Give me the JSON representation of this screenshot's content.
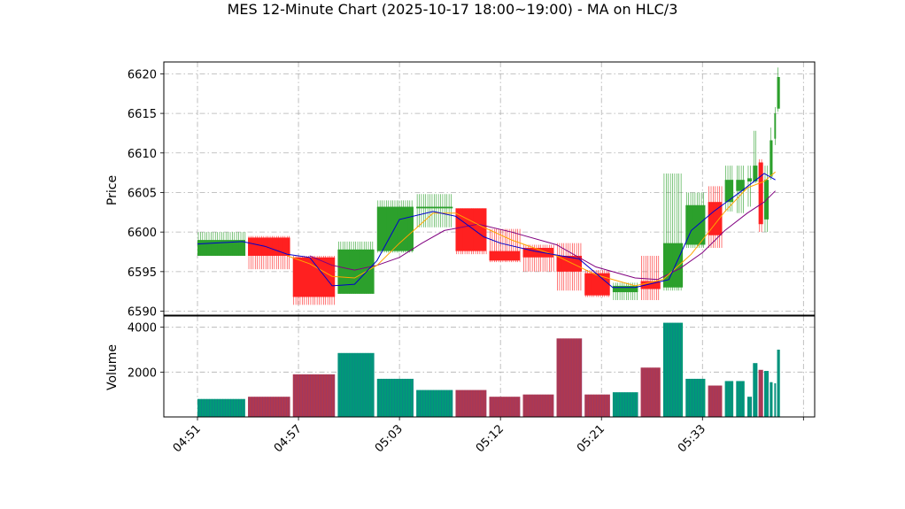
{
  "title": "MES 12-Minute Chart (2025-10-17 18:00~19:00) - MA on HLC/3",
  "chart_data": {
    "type": "ohlc-with-volume",
    "title": "MES 12-Minute Chart (2025-10-17 18:00~19:00) - MA on HLC/3",
    "price_panel": {
      "ylabel": "Price",
      "ylim": [
        6589.5,
        6621.5
      ],
      "yticks": [
        6590,
        6595,
        6600,
        6605,
        6610,
        6615,
        6620
      ],
      "grid": true
    },
    "volume_panel": {
      "ylabel": "Volume",
      "ylim": [
        0,
        4500
      ],
      "yticks": [
        2000,
        4000
      ],
      "grid": true
    },
    "xlim": [
      0,
      110
    ],
    "xticks": [
      {
        "x": 6,
        "label": "04:51"
      },
      {
        "x": 24,
        "label": "04:57"
      },
      {
        "x": 42,
        "label": "05:03"
      },
      {
        "x": 60,
        "label": "05:12"
      },
      {
        "x": 78,
        "label": "05:21"
      },
      {
        "x": 96,
        "label": "05:33"
      },
      {
        "x": 114,
        "label": ""
      }
    ],
    "colors": {
      "up": "#2ca02c",
      "down": "#ff2020",
      "vol_up": "#009a78",
      "vol_down": "#b0384f",
      "ma_fast": "#0000cc",
      "ma_mid": "#ffa500",
      "ma_slow": "#800080"
    },
    "segments": [
      {
        "x0": 6,
        "x1": 14.5,
        "open": 6597,
        "close": 6599,
        "high": 6600,
        "low": 6597,
        "volume": 800
      },
      {
        "x0": 15,
        "x1": 22.5,
        "open": 6599.3,
        "close": 6597,
        "high": 6599.5,
        "low": 6595.3,
        "volume": 900
      },
      {
        "x0": 23,
        "x1": 30.5,
        "open": 6596.8,
        "close": 6591.8,
        "high": 6597,
        "low": 6590.8,
        "volume": 1900
      },
      {
        "x0": 31,
        "x1": 37.5,
        "open": 6592.2,
        "close": 6597.8,
        "high": 6598.8,
        "low": 6592.2,
        "volume": 2850
      },
      {
        "x0": 38,
        "x1": 44.5,
        "open": 6597.6,
        "close": 6603.2,
        "high": 6604,
        "low": 6597.4,
        "volume": 1700
      },
      {
        "x0": 45,
        "x1": 51.5,
        "open": 6603,
        "close": 6603.2,
        "high": 6604.8,
        "low": 6600.6,
        "volume": 1200
      },
      {
        "x0": 52,
        "x1": 57.5,
        "open": 6603,
        "close": 6597.6,
        "high": 6603,
        "low": 6597.2,
        "volume": 1200
      },
      {
        "x0": 58,
        "x1": 63.5,
        "open": 6597.6,
        "close": 6596.4,
        "high": 6600.4,
        "low": 6596.2,
        "volume": 900
      },
      {
        "x0": 64,
        "x1": 69.5,
        "open": 6598,
        "close": 6596.8,
        "high": 6598.4,
        "low": 6595,
        "volume": 1000
      },
      {
        "x0": 70,
        "x1": 74.5,
        "open": 6597,
        "close": 6595,
        "high": 6598.6,
        "low": 6592.6,
        "volume": 3500
      },
      {
        "x0": 75,
        "x1": 79.5,
        "open": 6594.8,
        "close": 6592,
        "high": 6595.2,
        "low": 6591.8,
        "volume": 1000
      },
      {
        "x0": 80,
        "x1": 84.5,
        "open": 6592.4,
        "close": 6593.2,
        "high": 6593.6,
        "low": 6591.4,
        "volume": 1100
      },
      {
        "x0": 85,
        "x1": 88.5,
        "open": 6593.8,
        "close": 6592.8,
        "high": 6597,
        "low": 6591.4,
        "volume": 2200
      },
      {
        "x0": 89,
        "x1": 92.5,
        "open": 6593,
        "close": 6598.6,
        "high": 6607.4,
        "low": 6592.6,
        "volume": 4200
      },
      {
        "x0": 93,
        "x1": 96.5,
        "open": 6598.4,
        "close": 6603.4,
        "high": 6605,
        "low": 6598,
        "volume": 1700
      },
      {
        "x0": 97,
        "x1": 99.5,
        "open": 6603.8,
        "close": 6599.6,
        "high": 6605.8,
        "low": 6598,
        "volume": 1400
      },
      {
        "x0": 100,
        "x1": 101.5,
        "open": 6603.8,
        "close": 6606.6,
        "high": 6608.4,
        "low": 6602.6,
        "volume": 1600
      },
      {
        "x0": 102,
        "x1": 103.5,
        "open": 6605.2,
        "close": 6606.6,
        "high": 6608.4,
        "low": 6602.4,
        "volume": 1600
      },
      {
        "x0": 104,
        "x1": 104.8,
        "open": 6606.4,
        "close": 6606.8,
        "high": 6608.4,
        "low": 6603.2,
        "volume": 900
      },
      {
        "x0": 105,
        "x1": 105.8,
        "open": 6606.4,
        "close": 6608.4,
        "high": 6612.8,
        "low": 6606.2,
        "volume": 2400
      },
      {
        "x0": 106,
        "x1": 106.8,
        "open": 6608.8,
        "close": 6601,
        "high": 6609.2,
        "low": 6600,
        "volume": 2100
      },
      {
        "x0": 107,
        "x1": 107.8,
        "open": 6601.6,
        "close": 6606.6,
        "high": 6608.4,
        "low": 6600,
        "volume": 2050
      },
      {
        "x0": 108,
        "x1": 108.5,
        "open": 6607,
        "close": 6611.6,
        "high": 6613.2,
        "low": 6606.6,
        "volume": 1550
      },
      {
        "x0": 108.8,
        "x1": 109.1,
        "open": 6611.8,
        "close": 6615,
        "high": 6615.8,
        "low": 6611,
        "volume": 1500
      },
      {
        "x0": 109.3,
        "x1": 109.8,
        "open": 6615.6,
        "close": 6619.6,
        "high": 6620.8,
        "low": 6615.2,
        "volume": 3000
      }
    ],
    "ma_fast": {
      "x": [
        6,
        14,
        18,
        22,
        26,
        30,
        34,
        38,
        42,
        48,
        52,
        57,
        60,
        66,
        74,
        80,
        84,
        90,
        94,
        98,
        103,
        107,
        109
      ],
      "y": [
        6598.5,
        6598.8,
        6598.2,
        6597.2,
        6596.8,
        6593.2,
        6593.4,
        6596.4,
        6601.6,
        6602.6,
        6602.0,
        6599.4,
        6598.6,
        6597.6,
        6596.6,
        6593.0,
        6593.0,
        6594.0,
        6600.2,
        6602.6,
        6605.2,
        6607.4,
        6606.6
      ]
    },
    "ma_mid": {
      "x": [
        22,
        26,
        30,
        34,
        38,
        42,
        48,
        52,
        57,
        62,
        70,
        77,
        84,
        89,
        94,
        100,
        104,
        107,
        109
      ],
      "y": [
        6597.0,
        6596.0,
        6594.4,
        6594.2,
        6595.8,
        6598.6,
        6602.4,
        6602.4,
        6600.6,
        6599.0,
        6597.0,
        6594.6,
        6593.2,
        6594.0,
        6597.2,
        6602.6,
        6605.6,
        6606.4,
        6607.6
      ]
    },
    "ma_slow": {
      "x": [
        26,
        30,
        34,
        38,
        42,
        46,
        50,
        56,
        62,
        70,
        77,
        84,
        88,
        92,
        96,
        100,
        104,
        107,
        109
      ],
      "y": [
        6597.0,
        6595.8,
        6595.2,
        6595.8,
        6596.8,
        6598.6,
        6600.2,
        6601.0,
        6600.0,
        6598.4,
        6595.6,
        6594.2,
        6594.0,
        6595.4,
        6597.4,
        6600.2,
        6602.4,
        6603.8,
        6605.2
      ]
    }
  }
}
